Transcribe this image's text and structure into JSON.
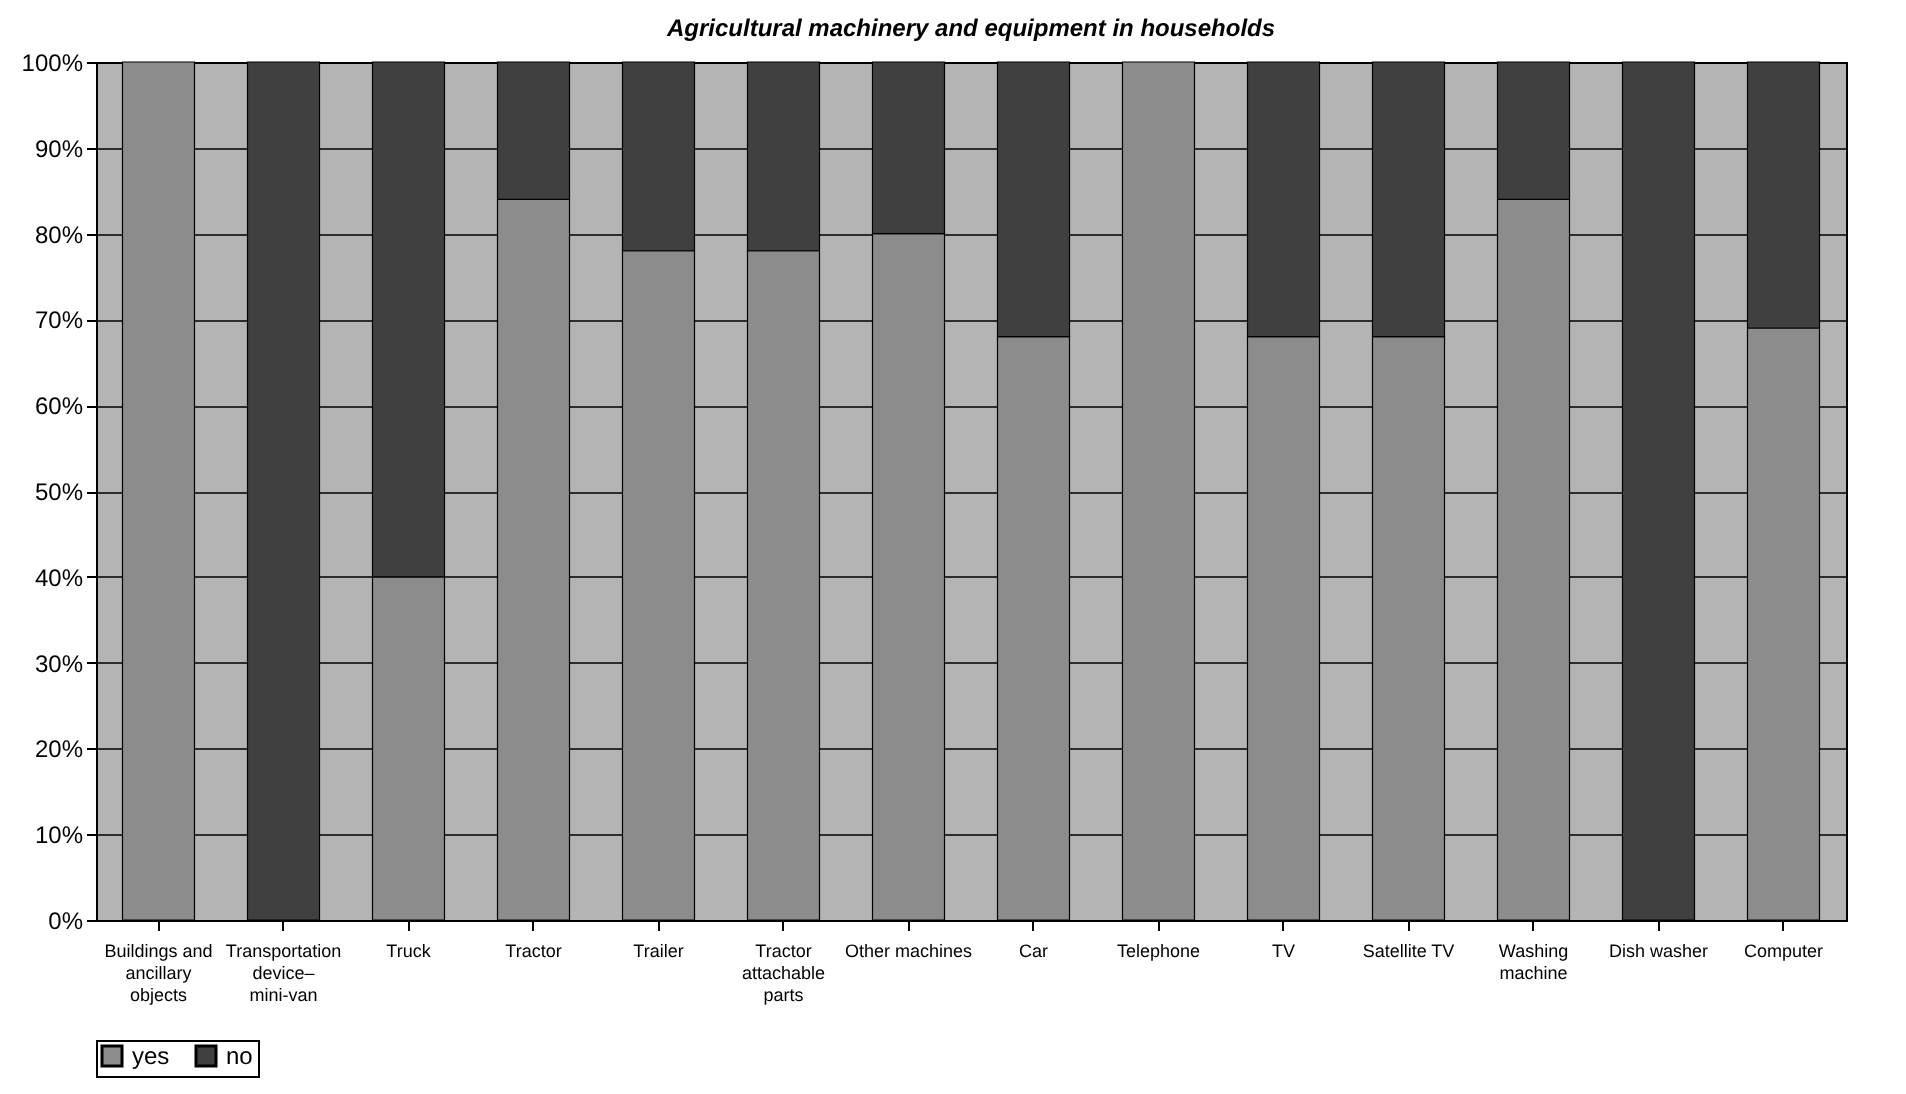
{
  "chart_data": {
    "type": "bar",
    "title": "Agricultural machinery and equipment in households",
    "stacked": true,
    "categories": [
      "Buildings and ancillary objects",
      "Transportation device– mini-van",
      "Truck",
      "Tractor",
      "Trailer",
      "Tractor attachable parts",
      "Other machines",
      "Car",
      "Telephone",
      "TV",
      "Satellite TV",
      "Washing machine",
      "Dish washer",
      "Computer"
    ],
    "series": [
      {
        "name": "yes",
        "color": "#8c8c8c",
        "values": [
          100,
          0,
          40,
          84,
          78,
          78,
          80,
          68,
          100,
          68,
          68,
          84,
          0,
          69
        ]
      },
      {
        "name": "no",
        "color": "#404040",
        "values": [
          0,
          100,
          60,
          16,
          22,
          22,
          20,
          32,
          0,
          32,
          32,
          16,
          100,
          31
        ]
      }
    ],
    "ylim": [
      0,
      100
    ],
    "yticks": [
      {
        "value": 0,
        "label": "0%"
      },
      {
        "value": 10,
        "label": "10%"
      },
      {
        "value": 20,
        "label": "20%"
      },
      {
        "value": 30,
        "label": "30%"
      },
      {
        "value": 40,
        "label": "40%"
      },
      {
        "value": 50,
        "label": "50%"
      },
      {
        "value": 60,
        "label": "60%"
      },
      {
        "value": 70,
        "label": "70%"
      },
      {
        "value": 80,
        "label": "80%"
      },
      {
        "value": 90,
        "label": "90%"
      },
      {
        "value": 100,
        "label": "100%"
      }
    ],
    "grid": "y",
    "legend": "bottom"
  }
}
